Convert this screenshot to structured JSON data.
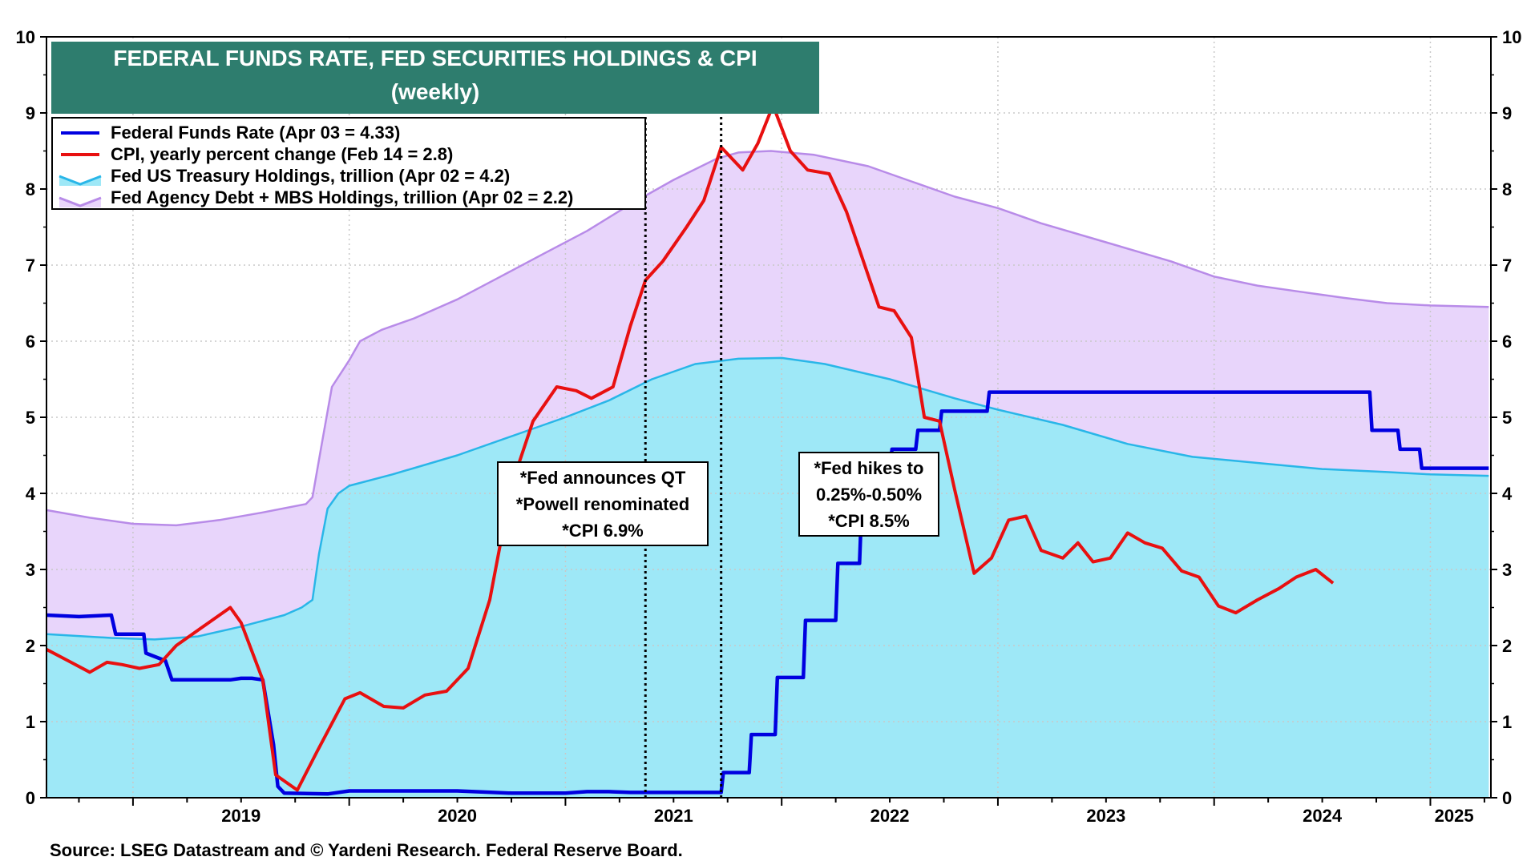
{
  "chart_data": {
    "type": "line",
    "title_line1": "FEDERAL FUNDS RATE, FED SECURITIES HOLDINGS & CPI",
    "title_line2": "(weekly)",
    "ylim": [
      0,
      10
    ],
    "y_ticks": [
      "0",
      "1",
      "2",
      "3",
      "4",
      "5",
      "6",
      "7",
      "8",
      "9",
      "10"
    ],
    "x_range": [
      2018.6,
      2025.28
    ],
    "x_ticks": [
      {
        "label": "2019",
        "pos": 2019.5
      },
      {
        "label": "2020",
        "pos": 2020.5
      },
      {
        "label": "2021",
        "pos": 2021.5
      },
      {
        "label": "2022",
        "pos": 2022.5
      },
      {
        "label": "2023",
        "pos": 2023.5
      },
      {
        "label": "2024",
        "pos": 2024.5
      },
      {
        "label": "2025",
        "pos": 2025.11
      }
    ],
    "year_boundaries": [
      2019,
      2020,
      2021,
      2022,
      2023,
      2024,
      2025
    ],
    "vertical_markers": [
      2021.37,
      2021.72
    ],
    "series": [
      {
        "name": "Fed Agency Debt + MBS Holdings (stacked total)",
        "legend": "Fed Agency Debt + MBS Holdings, trillion (Apr 02 = 2.2)",
        "color": "#b88be8",
        "fill": "#e8d5fb",
        "points": [
          [
            2018.6,
            3.78
          ],
          [
            2018.8,
            3.68
          ],
          [
            2019.0,
            3.6
          ],
          [
            2019.2,
            3.58
          ],
          [
            2019.4,
            3.65
          ],
          [
            2019.6,
            3.75
          ],
          [
            2019.8,
            3.86
          ],
          [
            2019.83,
            3.95
          ],
          [
            2019.87,
            4.6
          ],
          [
            2019.92,
            5.4
          ],
          [
            2020.0,
            5.75
          ],
          [
            2020.05,
            6.0
          ],
          [
            2020.15,
            6.15
          ],
          [
            2020.3,
            6.3
          ],
          [
            2020.5,
            6.55
          ],
          [
            2020.7,
            6.85
          ],
          [
            2020.9,
            7.15
          ],
          [
            2021.1,
            7.45
          ],
          [
            2021.3,
            7.8
          ],
          [
            2021.5,
            8.12
          ],
          [
            2021.7,
            8.4
          ],
          [
            2021.8,
            8.48
          ],
          [
            2021.95,
            8.5
          ],
          [
            2022.15,
            8.45
          ],
          [
            2022.4,
            8.3
          ],
          [
            2022.6,
            8.1
          ],
          [
            2022.8,
            7.9
          ],
          [
            2023.0,
            7.75
          ],
          [
            2023.2,
            7.55
          ],
          [
            2023.5,
            7.3
          ],
          [
            2023.8,
            7.05
          ],
          [
            2024.0,
            6.85
          ],
          [
            2024.2,
            6.73
          ],
          [
            2024.4,
            6.65
          ],
          [
            2024.6,
            6.57
          ],
          [
            2024.8,
            6.5
          ],
          [
            2025.0,
            6.47
          ],
          [
            2025.27,
            6.45
          ]
        ]
      },
      {
        "name": "Fed US Treasury Holdings",
        "legend": "Fed US Treasury Holdings, trillion (Apr 02 = 4.2)",
        "color": "#29b6e8",
        "fill": "#9ee8f7",
        "points": [
          [
            2018.6,
            2.15
          ],
          [
            2018.9,
            2.1
          ],
          [
            2019.1,
            2.08
          ],
          [
            2019.3,
            2.12
          ],
          [
            2019.5,
            2.25
          ],
          [
            2019.7,
            2.4
          ],
          [
            2019.78,
            2.5
          ],
          [
            2019.83,
            2.6
          ],
          [
            2019.86,
            3.2
          ],
          [
            2019.9,
            3.8
          ],
          [
            2019.95,
            4.0
          ],
          [
            2020.0,
            4.1
          ],
          [
            2020.2,
            4.25
          ],
          [
            2020.5,
            4.5
          ],
          [
            2020.8,
            4.8
          ],
          [
            2021.0,
            5.0
          ],
          [
            2021.2,
            5.22
          ],
          [
            2021.4,
            5.5
          ],
          [
            2021.6,
            5.7
          ],
          [
            2021.8,
            5.77
          ],
          [
            2022.0,
            5.78
          ],
          [
            2022.2,
            5.7
          ],
          [
            2022.5,
            5.5
          ],
          [
            2022.8,
            5.25
          ],
          [
            2023.0,
            5.1
          ],
          [
            2023.3,
            4.9
          ],
          [
            2023.6,
            4.65
          ],
          [
            2023.9,
            4.48
          ],
          [
            2024.2,
            4.4
          ],
          [
            2024.5,
            4.32
          ],
          [
            2024.8,
            4.28
          ],
          [
            2025.0,
            4.25
          ],
          [
            2025.27,
            4.23
          ]
        ]
      },
      {
        "name": "Federal Funds Rate",
        "legend": "Federal Funds Rate (Apr 03 = 4.33)",
        "color": "#0000e0",
        "points": [
          [
            2018.6,
            2.4
          ],
          [
            2018.75,
            2.38
          ],
          [
            2018.9,
            2.4
          ],
          [
            2018.92,
            2.15
          ],
          [
            2019.05,
            2.15
          ],
          [
            2019.06,
            1.9
          ],
          [
            2019.15,
            1.8
          ],
          [
            2019.18,
            1.55
          ],
          [
            2019.35,
            1.55
          ],
          [
            2019.45,
            1.55
          ],
          [
            2019.5,
            1.57
          ],
          [
            2019.55,
            1.57
          ],
          [
            2019.6,
            1.55
          ],
          [
            2019.65,
            0.7
          ],
          [
            2019.67,
            0.15
          ],
          [
            2019.7,
            0.06
          ],
          [
            2019.9,
            0.05
          ],
          [
            2020.0,
            0.09
          ],
          [
            2020.5,
            0.09
          ],
          [
            2020.75,
            0.06
          ],
          [
            2021.0,
            0.06
          ],
          [
            2021.1,
            0.08
          ],
          [
            2021.2,
            0.08
          ],
          [
            2021.3,
            0.07
          ],
          [
            2021.72,
            0.07
          ],
          [
            2021.73,
            0.33
          ],
          [
            2021.85,
            0.33
          ],
          [
            2021.86,
            0.83
          ],
          [
            2021.97,
            0.83
          ],
          [
            2021.98,
            1.58
          ],
          [
            2022.1,
            1.58
          ],
          [
            2022.11,
            2.33
          ],
          [
            2022.25,
            2.33
          ],
          [
            2022.26,
            3.08
          ],
          [
            2022.36,
            3.08
          ],
          [
            2022.37,
            3.83
          ],
          [
            2022.4,
            4.33
          ],
          [
            2022.5,
            4.33
          ],
          [
            2022.51,
            4.58
          ],
          [
            2022.62,
            4.58
          ],
          [
            2022.63,
            4.83
          ],
          [
            2022.73,
            4.83
          ],
          [
            2022.74,
            5.08
          ],
          [
            2022.95,
            5.08
          ],
          [
            2022.96,
            5.33
          ],
          [
            2024.72,
            5.33
          ],
          [
            2024.73,
            4.83
          ],
          [
            2024.85,
            4.83
          ],
          [
            2024.86,
            4.58
          ],
          [
            2024.95,
            4.58
          ],
          [
            2024.96,
            4.33
          ],
          [
            2025.27,
            4.33
          ]
        ]
      },
      {
        "name": "CPI, yearly percent change",
        "legend": "CPI, yearly percent change (Feb 14 = 2.8)",
        "color": "#e81010",
        "points": [
          [
            2018.6,
            1.95
          ],
          [
            2018.7,
            1.8
          ],
          [
            2018.8,
            1.65
          ],
          [
            2018.88,
            1.78
          ],
          [
            2018.95,
            1.75
          ],
          [
            2019.03,
            1.7
          ],
          [
            2019.12,
            1.75
          ],
          [
            2019.2,
            2.0
          ],
          [
            2019.35,
            2.3
          ],
          [
            2019.45,
            2.5
          ],
          [
            2019.5,
            2.3
          ],
          [
            2019.6,
            1.55
          ],
          [
            2019.66,
            0.3
          ],
          [
            2019.76,
            0.1
          ],
          [
            2019.85,
            0.6
          ],
          [
            2019.98,
            1.3
          ],
          [
            2020.05,
            1.38
          ],
          [
            2020.16,
            1.2
          ],
          [
            2020.25,
            1.18
          ],
          [
            2020.35,
            1.35
          ],
          [
            2020.45,
            1.4
          ],
          [
            2020.55,
            1.7
          ],
          [
            2020.65,
            2.6
          ],
          [
            2020.75,
            4.1
          ],
          [
            2020.85,
            4.95
          ],
          [
            2020.96,
            5.4
          ],
          [
            2021.05,
            5.35
          ],
          [
            2021.12,
            5.25
          ],
          [
            2021.22,
            5.4
          ],
          [
            2021.3,
            6.2
          ],
          [
            2021.37,
            6.8
          ],
          [
            2021.45,
            7.05
          ],
          [
            2021.56,
            7.5
          ],
          [
            2021.64,
            7.85
          ],
          [
            2021.72,
            8.55
          ],
          [
            2021.82,
            8.25
          ],
          [
            2021.89,
            8.6
          ],
          [
            2021.96,
            9.1
          ],
          [
            2022.04,
            8.5
          ],
          [
            2022.12,
            8.25
          ],
          [
            2022.22,
            8.2
          ],
          [
            2022.3,
            7.7
          ],
          [
            2022.45,
            6.45
          ],
          [
            2022.52,
            6.4
          ],
          [
            2022.6,
            6.05
          ],
          [
            2022.66,
            5.0
          ],
          [
            2022.73,
            4.95
          ],
          [
            2022.8,
            4.05
          ],
          [
            2022.89,
            2.95
          ],
          [
            2022.97,
            3.15
          ],
          [
            2023.05,
            3.65
          ],
          [
            2023.13,
            3.7
          ],
          [
            2023.2,
            3.25
          ],
          [
            2023.3,
            3.15
          ],
          [
            2023.37,
            3.35
          ],
          [
            2023.44,
            3.1
          ],
          [
            2023.52,
            3.15
          ],
          [
            2023.6,
            3.48
          ],
          [
            2023.68,
            3.35
          ],
          [
            2023.76,
            3.28
          ],
          [
            2023.85,
            2.98
          ],
          [
            2023.93,
            2.9
          ],
          [
            2024.02,
            2.52
          ],
          [
            2024.1,
            2.43
          ],
          [
            2024.2,
            2.6
          ],
          [
            2024.3,
            2.75
          ],
          [
            2024.38,
            2.9
          ],
          [
            2024.47,
            3.0
          ],
          [
            2024.55,
            2.82
          ]
        ]
      }
    ]
  },
  "annotations": [
    {
      "lines": [
        "*Fed announces QT",
        "*Powell renominated",
        "*CPI 6.9%"
      ]
    },
    {
      "lines": [
        "*Fed hikes to",
        "0.25%-0.50%",
        "*CPI 8.5%"
      ]
    }
  ],
  "source": "Source: LSEG Datastream and © Yardeni Research. Federal Reserve Board."
}
